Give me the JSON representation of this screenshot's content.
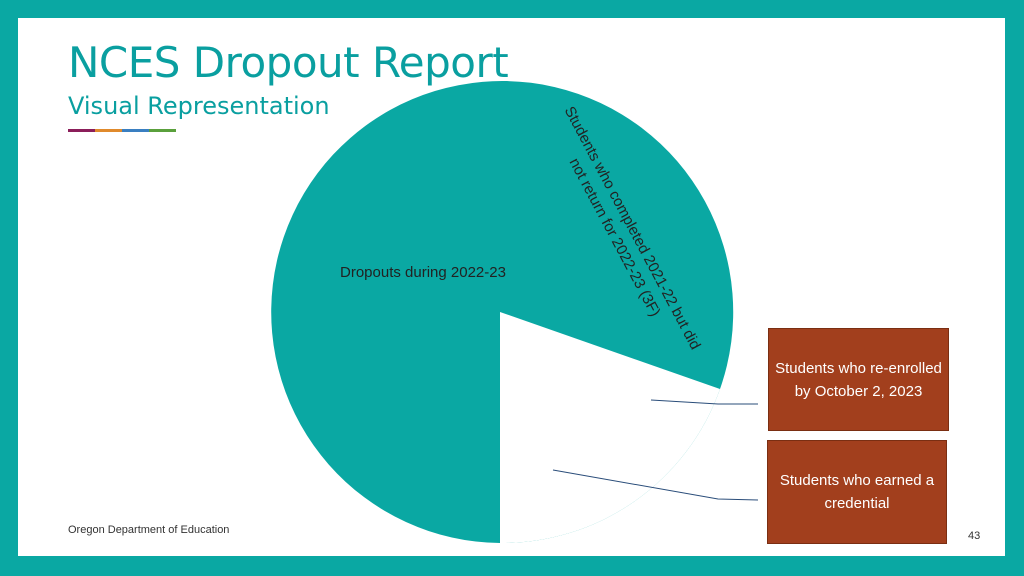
{
  "header": {
    "title": "NCES Dropout Report",
    "subtitle": "Visual Representation",
    "accent_colors": [
      "#8b1e5a",
      "#e08a2c",
      "#3a7fc1",
      "#5aa03c"
    ]
  },
  "diagram": {
    "pie_color": "#0aa8a3",
    "callout_color": "#a23f1d",
    "large_segment_label": "Dropouts during 2022-23",
    "rotated_label_line1": "Students who completed 2021-22 but did",
    "rotated_label_line2": "not return for 2022-23 (3F)",
    "callout_1": "Students who re-enrolled by October 2, 2023",
    "callout_2": "Students who earned a credential"
  },
  "footer": {
    "organization": "Oregon Department of Education",
    "page_number": "43"
  }
}
